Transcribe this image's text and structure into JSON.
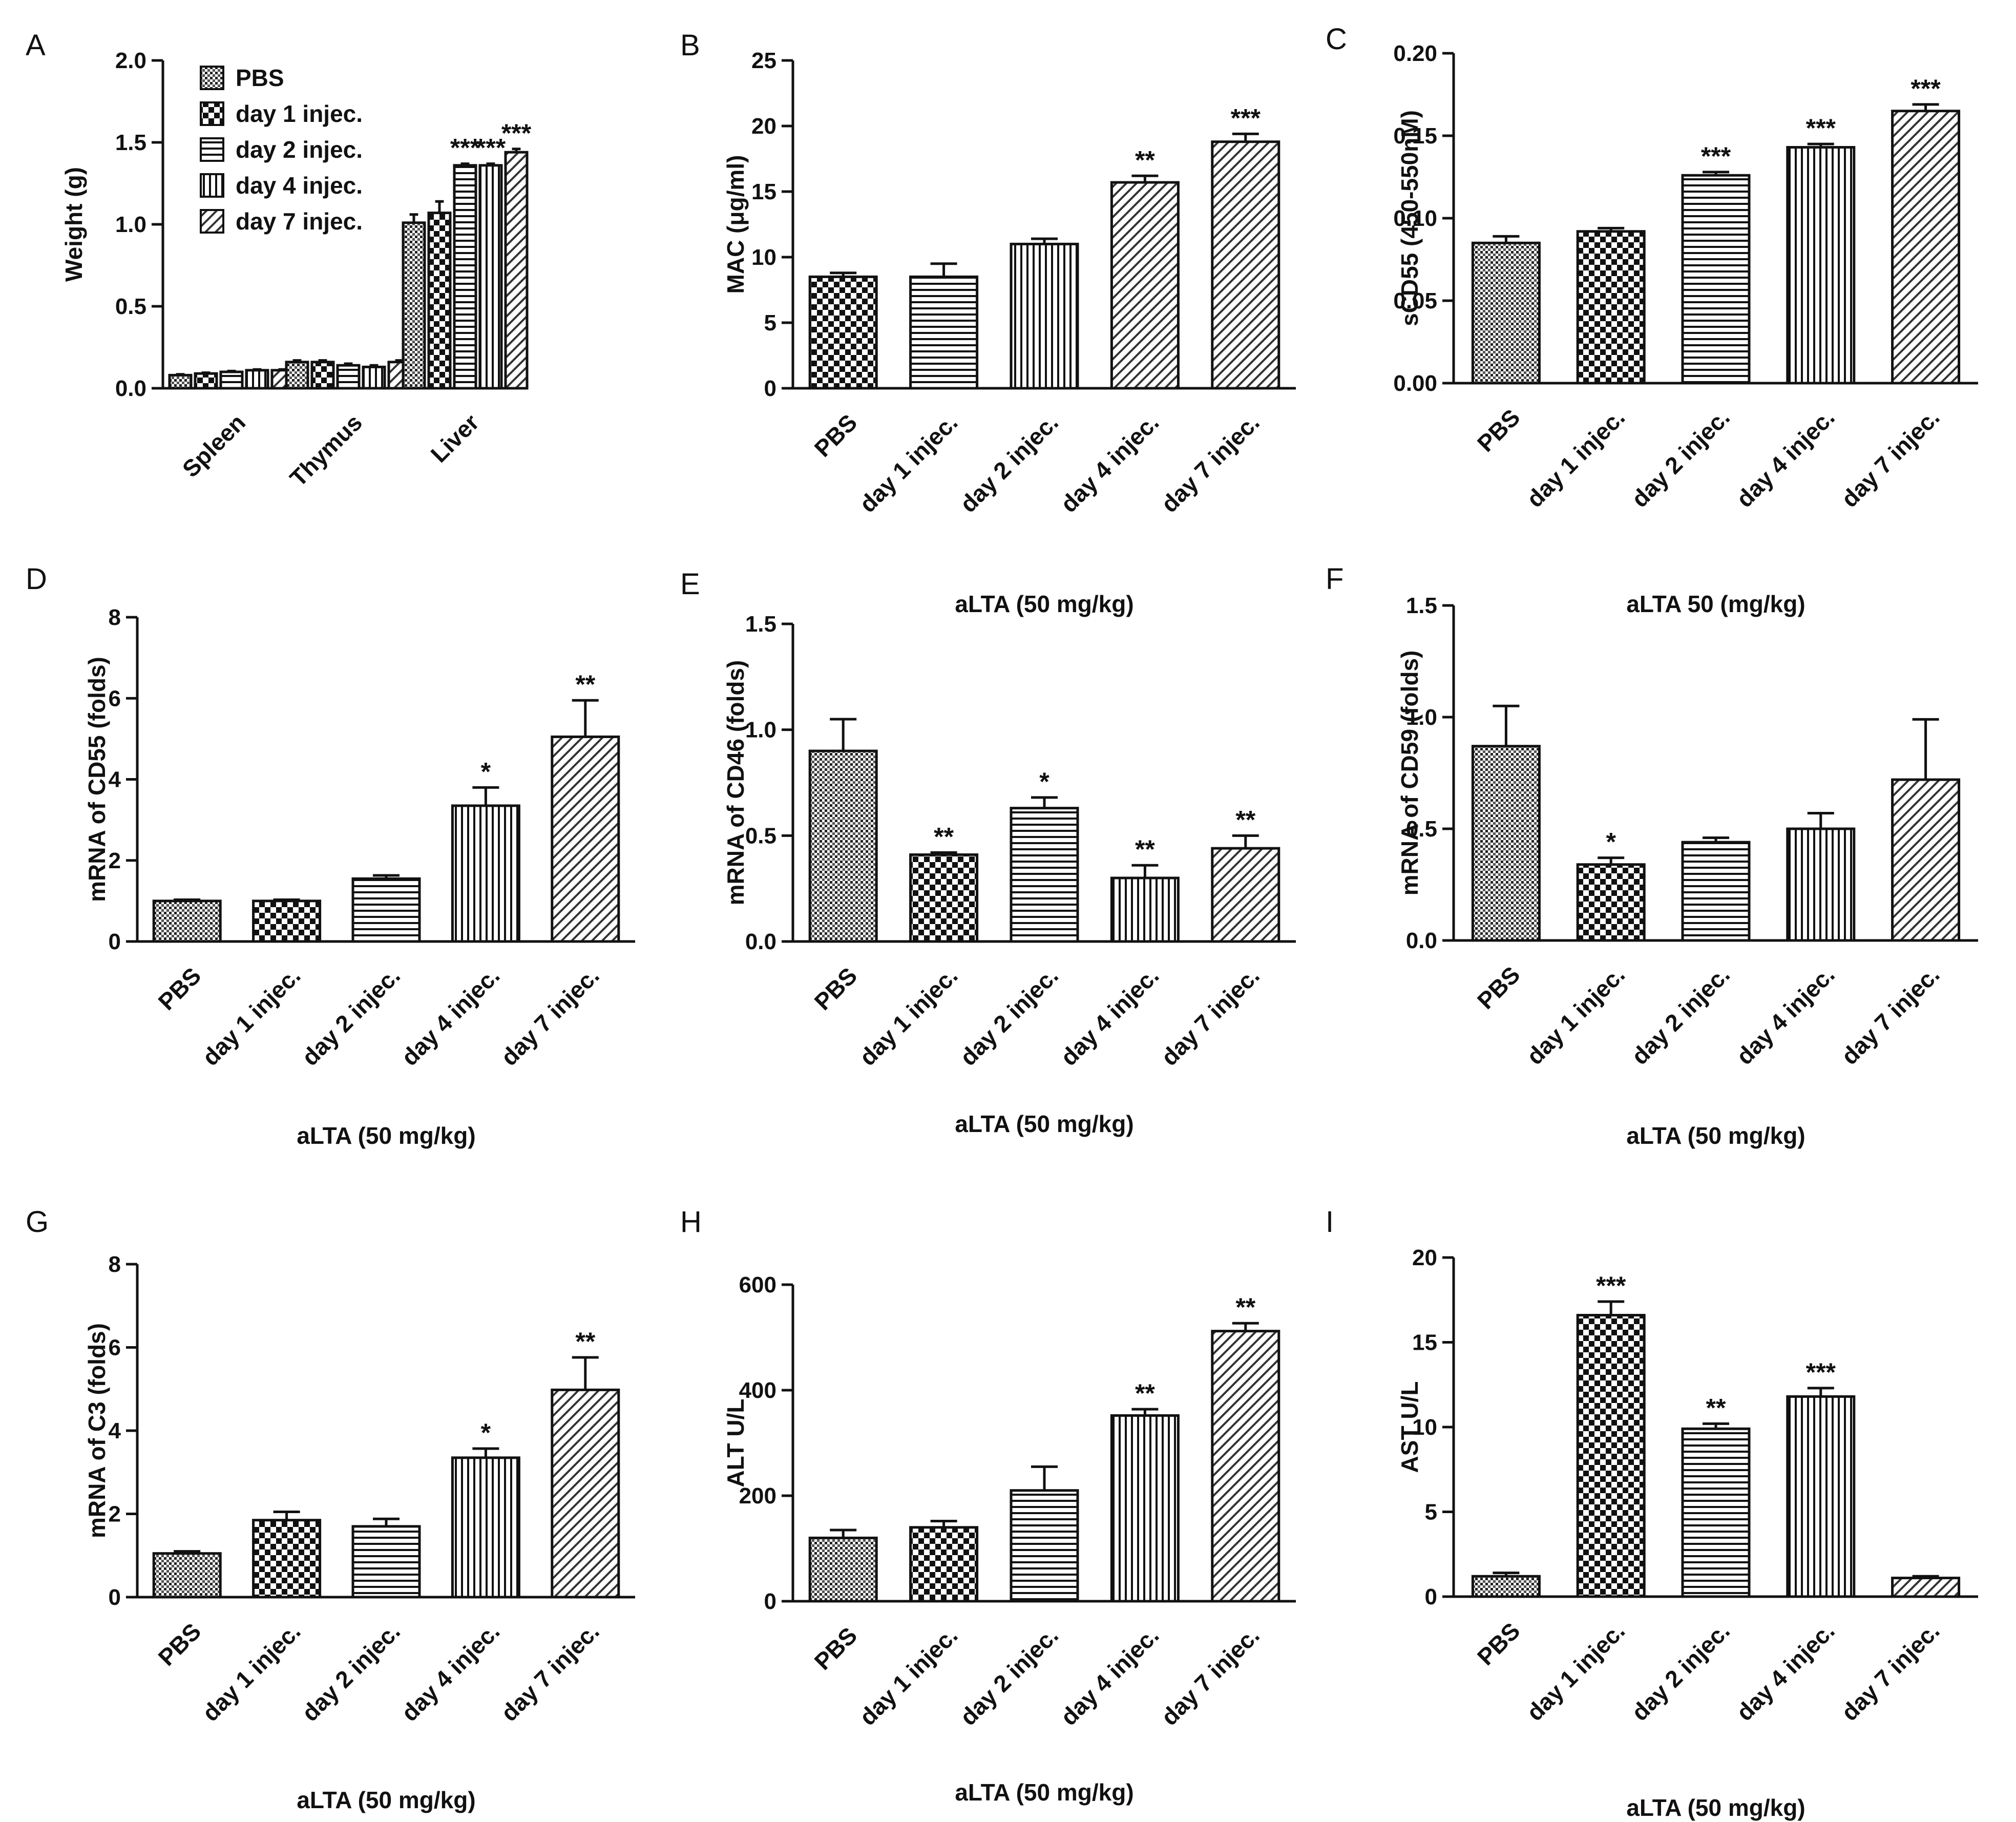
{
  "figure": {
    "background": "#ffffff",
    "stroke": "#111111"
  },
  "chart_data": [
    {
      "id": "A",
      "type": "bar",
      "letter": "A",
      "ylabel": "Weight (g)",
      "xlabel": "",
      "ylim": [
        0,
        2.0
      ],
      "yticks": [
        "0.0",
        "0.5",
        "1.0",
        "1.5",
        "2.0"
      ],
      "ytick_values": [
        0,
        0.5,
        1.0,
        1.5,
        2.0
      ],
      "categories": [
        "Spleen",
        "Thymus",
        "Liver"
      ],
      "legend": {
        "position": "top-left",
        "entries": [
          "PBS",
          "day 1 injec.",
          "day 2 injec.",
          "day 4 injec.",
          "day 7 injec."
        ]
      },
      "series": [
        {
          "name": "PBS",
          "pattern": "dots",
          "values": [
            0.08,
            0.16,
            1.01
          ],
          "errors": [
            0.005,
            0.01,
            0.05
          ],
          "stars": [
            "",
            "",
            ""
          ]
        },
        {
          "name": "day 1 injec.",
          "pattern": "check",
          "values": [
            0.09,
            0.16,
            1.07
          ],
          "errors": [
            0.005,
            0.01,
            0.07
          ],
          "stars": [
            "",
            "",
            ""
          ]
        },
        {
          "name": "day 2 injec.",
          "pattern": "hlines",
          "values": [
            0.1,
            0.14,
            1.36
          ],
          "errors": [
            0.005,
            0.01,
            0.01
          ],
          "stars": [
            "",
            "",
            "***"
          ]
        },
        {
          "name": "day 4 injec.",
          "pattern": "vlines",
          "values": [
            0.11,
            0.13,
            1.36
          ],
          "errors": [
            0.005,
            0.01,
            0.01
          ],
          "stars": [
            "",
            "",
            "***"
          ]
        },
        {
          "name": "day 7 injec.",
          "pattern": "diag",
          "values": [
            0.11,
            0.16,
            1.44
          ],
          "errors": [
            0.005,
            0.01,
            0.02
          ],
          "stars": [
            "",
            "",
            "***"
          ]
        }
      ]
    },
    {
      "id": "B",
      "type": "bar",
      "letter": "B",
      "ylabel": "MAC (μg/ml)",
      "xlabel": "aLTA (50 mg/kg)",
      "ylim": [
        0,
        25
      ],
      "yticks": [
        "0",
        "5",
        "10",
        "15",
        "20",
        "25"
      ],
      "ytick_values": [
        0,
        5,
        10,
        15,
        20,
        25
      ],
      "categories": [
        "PBS",
        "day 1 injec.",
        "day 2 injec.",
        "day 4 injec.",
        "day 7 injec."
      ],
      "patterns": [
        "check",
        "hlines",
        "vlines",
        "diag",
        "diag"
      ],
      "values": [
        8.5,
        8.5,
        11.0,
        15.7,
        18.8
      ],
      "errors": [
        0.3,
        1.0,
        0.4,
        0.5,
        0.6
      ],
      "stars": [
        "",
        "",
        "",
        "**",
        "***"
      ]
    },
    {
      "id": "C",
      "type": "bar",
      "letter": "C",
      "ylabel": "sCD55 (450-550nM)",
      "xlabel": "aLTA 50 (mg/kg)",
      "ylim": [
        0,
        0.2
      ],
      "yticks": [
        "0.00",
        "0.05",
        "0.10",
        "0.15",
        "0.20"
      ],
      "ytick_values": [
        0,
        0.05,
        0.1,
        0.15,
        0.2
      ],
      "categories": [
        "PBS",
        "day 1 injec.",
        "day 2 injec.",
        "day 4 injec.",
        "day 7 injec."
      ],
      "patterns": [
        "dots",
        "check",
        "hlines",
        "vlines",
        "diag"
      ],
      "values": [
        0.085,
        0.092,
        0.126,
        0.143,
        0.165
      ],
      "errors": [
        0.004,
        0.002,
        0.002,
        0.002,
        0.004
      ],
      "stars": [
        "",
        "",
        "***",
        "***",
        "***"
      ]
    },
    {
      "id": "D",
      "type": "bar",
      "letter": "D",
      "ylabel": "mRNA of CD55 (folds)",
      "xlabel": "aLTA (50 mg/kg)",
      "ylim": [
        0,
        8
      ],
      "yticks": [
        "0",
        "2",
        "4",
        "6",
        "8"
      ],
      "ytick_values": [
        0,
        2,
        4,
        6,
        8
      ],
      "categories": [
        "PBS",
        "day 1 injec.",
        "day 2 injec.",
        "day 4 injec.",
        "day 7 injec."
      ],
      "patterns": [
        "dots",
        "check",
        "hlines",
        "vlines",
        "diag"
      ],
      "values": [
        1.0,
        1.0,
        1.55,
        3.35,
        5.05
      ],
      "errors": [
        0.03,
        0.03,
        0.08,
        0.45,
        0.9
      ],
      "stars": [
        "",
        "",
        "",
        "*",
        "**"
      ]
    },
    {
      "id": "E",
      "type": "bar",
      "letter": "E",
      "ylabel": "mRNA of CD46 (folds)",
      "xlabel": "aLTA (50 mg/kg)",
      "ylim": [
        0,
        1.5
      ],
      "yticks": [
        "0.0",
        "0.5",
        "1.0",
        "1.5"
      ],
      "ytick_values": [
        0,
        0.5,
        1.0,
        1.5
      ],
      "categories": [
        "PBS",
        "day 1 injec.",
        "day 2 injec.",
        "day 4 injec.",
        "day 7 injec."
      ],
      "patterns": [
        "dots",
        "check",
        "hlines",
        "vlines",
        "diag"
      ],
      "values": [
        0.9,
        0.41,
        0.63,
        0.3,
        0.44
      ],
      "errors": [
        0.15,
        0.01,
        0.05,
        0.06,
        0.06
      ],
      "stars": [
        "",
        "**",
        "*",
        "**",
        "**"
      ]
    },
    {
      "id": "F",
      "type": "bar",
      "letter": "F",
      "ylabel": "mRNA of CD59 (folds)",
      "xlabel": "aLTA (50 mg/kg)",
      "ylim": [
        0,
        1.5
      ],
      "yticks": [
        "0.0",
        "0.5",
        "1.0",
        "1.5"
      ],
      "ytick_values": [
        0,
        0.5,
        1.0,
        1.5
      ],
      "categories": [
        "PBS",
        "day 1 injec.",
        "day 2 injec.",
        "day 4 injec.",
        "day 7 injec."
      ],
      "patterns": [
        "dots",
        "check",
        "hlines",
        "vlines",
        "diag"
      ],
      "values": [
        0.87,
        0.34,
        0.44,
        0.5,
        0.72
      ],
      "errors": [
        0.18,
        0.03,
        0.02,
        0.07,
        0.27
      ],
      "stars": [
        "",
        "*",
        "",
        "",
        ""
      ]
    },
    {
      "id": "G",
      "type": "bar",
      "letter": "G",
      "ylabel": "mRNA of C3 (folds)",
      "xlabel": "aLTA (50 mg/kg)",
      "ylim": [
        0,
        8
      ],
      "yticks": [
        "0",
        "2",
        "4",
        "6",
        "8"
      ],
      "ytick_values": [
        0,
        2,
        4,
        6,
        8
      ],
      "categories": [
        "PBS",
        "day 1 injec.",
        "day 2 injec.",
        "day 4 injec.",
        "day 7 injec."
      ],
      "patterns": [
        "dots",
        "check",
        "hlines",
        "vlines",
        "diag"
      ],
      "values": [
        1.05,
        1.85,
        1.7,
        3.35,
        4.98
      ],
      "errors": [
        0.05,
        0.2,
        0.18,
        0.22,
        0.78
      ],
      "stars": [
        "",
        "",
        "",
        "*",
        "**"
      ]
    },
    {
      "id": "H",
      "type": "bar",
      "letter": "H",
      "ylabel": "ALT U/L",
      "xlabel": "aLTA (50 mg/kg)",
      "ylim": [
        0,
        600
      ],
      "yticks": [
        "0",
        "200",
        "400",
        "600"
      ],
      "ytick_values": [
        0,
        200,
        400,
        600
      ],
      "categories": [
        "PBS",
        "day 1 injec.",
        "day 2 injec.",
        "day 4 injec.",
        "day 7 injec."
      ],
      "patterns": [
        "dots",
        "check",
        "hlines",
        "vlines",
        "diag"
      ],
      "values": [
        120,
        140,
        210,
        352,
        512
      ],
      "errors": [
        15,
        12,
        45,
        12,
        15
      ],
      "stars": [
        "",
        "",
        "",
        "**",
        "**"
      ]
    },
    {
      "id": "I",
      "type": "bar",
      "letter": "I",
      "ylabel": "AST U/L",
      "xlabel": "aLTA (50 mg/kg)",
      "ylim": [
        0,
        20
      ],
      "yticks": [
        "0",
        "5",
        "10",
        "15",
        "20"
      ],
      "ytick_values": [
        0,
        5,
        10,
        15,
        20
      ],
      "categories": [
        "PBS",
        "day 1 injec.",
        "day 2 injec.",
        "day 4 injec.",
        "day 7 injec."
      ],
      "patterns": [
        "dots",
        "check",
        "hlines",
        "vlines",
        "diag"
      ],
      "values": [
        1.2,
        16.6,
        9.9,
        11.8,
        1.1
      ],
      "errors": [
        0.2,
        0.8,
        0.3,
        0.5,
        0.1
      ],
      "stars": [
        "",
        "***",
        "**",
        "***",
        ""
      ]
    }
  ]
}
